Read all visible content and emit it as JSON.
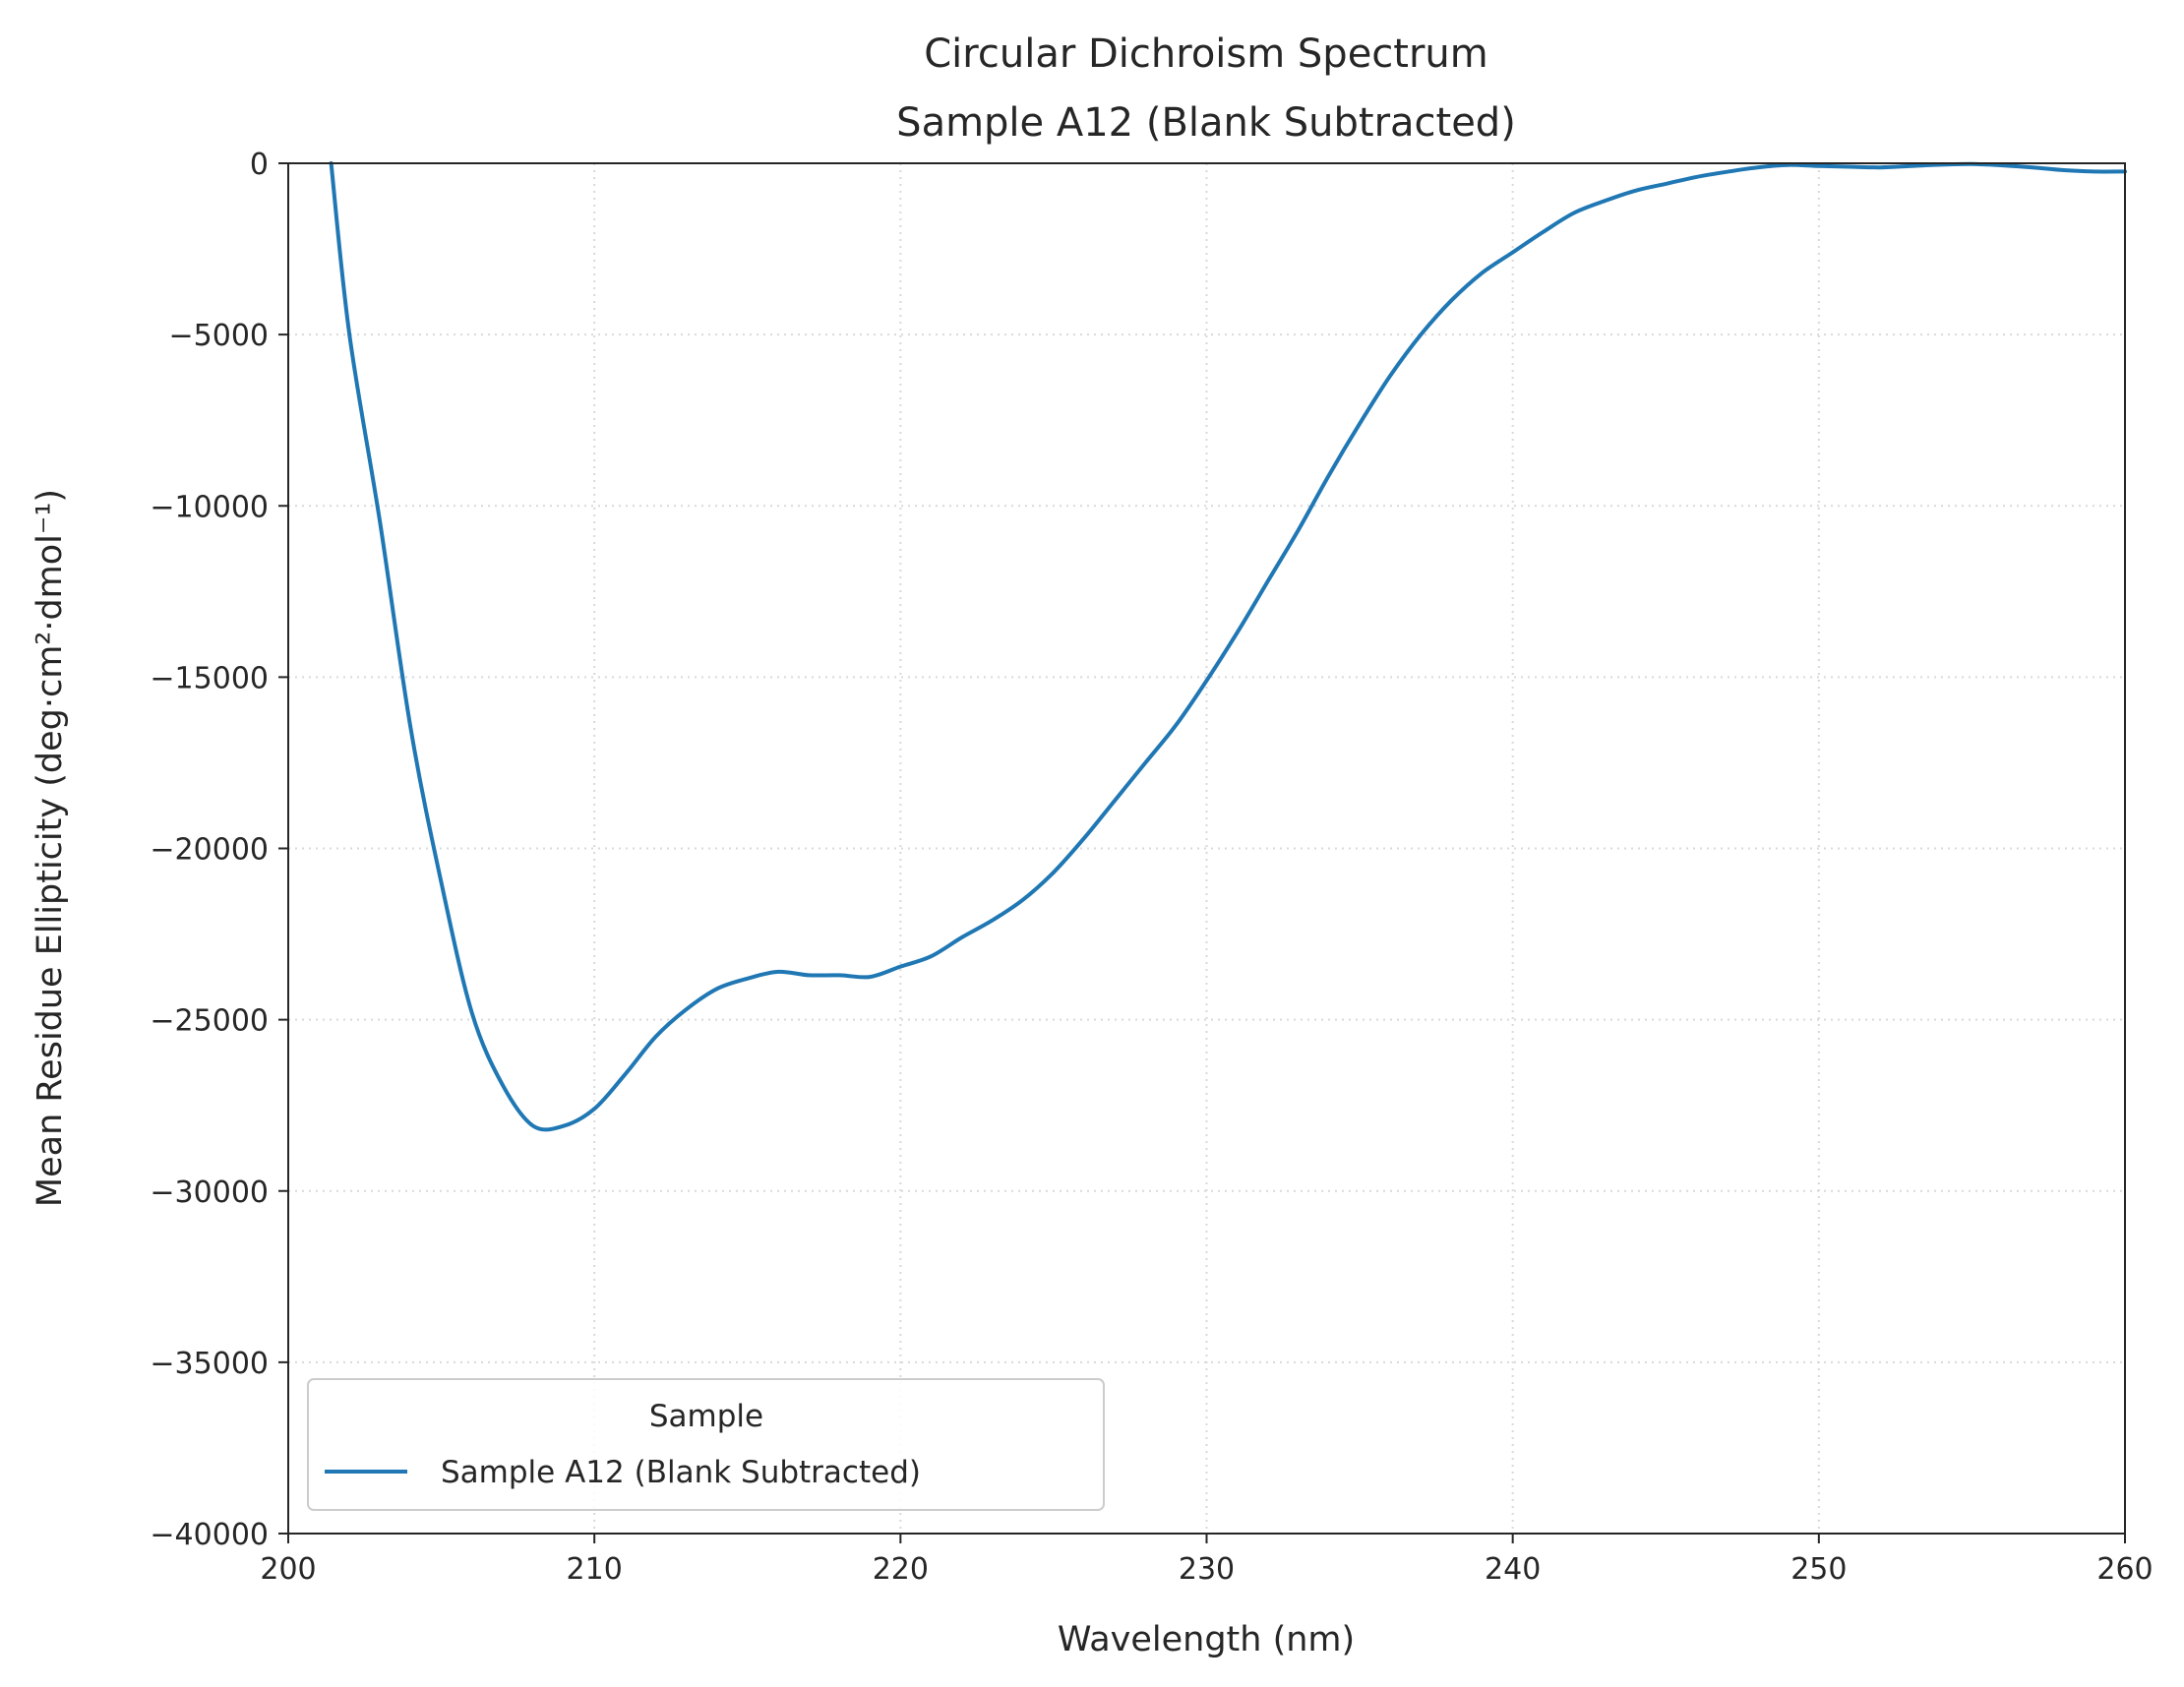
{
  "chart_data": {
    "type": "line",
    "title": "Circular Dichroism Spectrum",
    "subtitle": "Sample A12 (Blank Subtracted)",
    "xlabel": "Wavelength (nm)",
    "ylabel": "Mean Residue Ellipticity (deg·cm²·dmol⁻¹)",
    "xlim": [
      200,
      260
    ],
    "ylim": [
      -40000,
      0
    ],
    "xticks": [
      200,
      210,
      220,
      230,
      240,
      250,
      260
    ],
    "xtick_labels": [
      "200",
      "210",
      "220",
      "230",
      "240",
      "250",
      "260"
    ],
    "yticks": [
      0,
      -5000,
      -10000,
      -15000,
      -20000,
      -25000,
      -30000,
      -35000,
      -40000
    ],
    "ytick_labels": [
      "0",
      "−5000",
      "−10000",
      "−15000",
      "−20000",
      "−25000",
      "−30000",
      "−35000",
      "−40000"
    ],
    "grid": true,
    "legend": {
      "title": "Sample",
      "placement": "lower-left",
      "entries": [
        "Sample A12 (Blank Subtracted)"
      ]
    },
    "series": [
      {
        "name": "Sample A12 (Blank Subtracted)",
        "color": "#1f77b4",
        "x": [
          201.4,
          202,
          203,
          204,
          205,
          206,
          207,
          208,
          209,
          210,
          211,
          212,
          213,
          214,
          215,
          216,
          217,
          218,
          219,
          220,
          221,
          222,
          223,
          224,
          225,
          226,
          227,
          228,
          229,
          230,
          231,
          232,
          233,
          234,
          235,
          236,
          237,
          238,
          239,
          240,
          241,
          242,
          243,
          244,
          245,
          246,
          247,
          248,
          249,
          250,
          251,
          252,
          253,
          254,
          255,
          256,
          257,
          258,
          259,
          260
        ],
        "y": [
          0,
          -5000,
          -10500,
          -16500,
          -21000,
          -24800,
          -26900,
          -28100,
          -28100,
          -27600,
          -26600,
          -25500,
          -24700,
          -24100,
          -23800,
          -23600,
          -23700,
          -23700,
          -23750,
          -23450,
          -23150,
          -22600,
          -22100,
          -21500,
          -20700,
          -19700,
          -18600,
          -17500,
          -16400,
          -15100,
          -13700,
          -12200,
          -10700,
          -9100,
          -7600,
          -6200,
          -5000,
          -4000,
          -3200,
          -2600,
          -2000,
          -1450,
          -1100,
          -800,
          -600,
          -400,
          -250,
          -120,
          -50,
          -80,
          -100,
          -120,
          -80,
          -40,
          -20,
          -60,
          -120,
          -200,
          -240,
          -240
        ]
      }
    ]
  }
}
